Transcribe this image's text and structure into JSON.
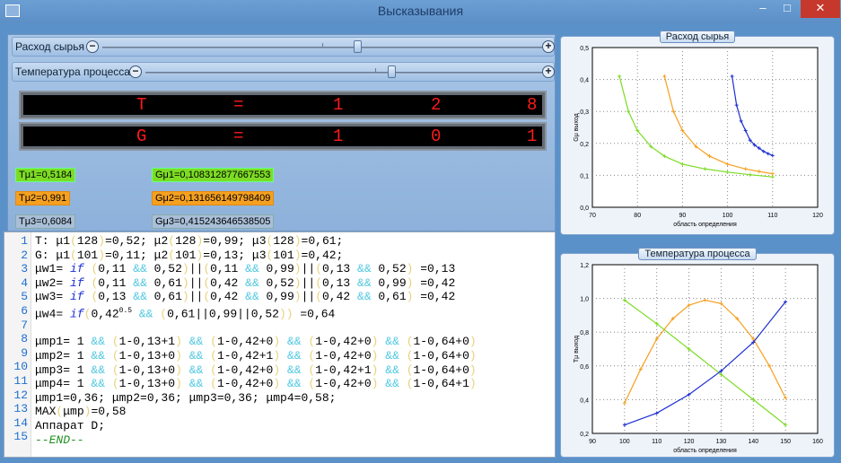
{
  "window": {
    "title": "Высказывания",
    "icon": "grid-app-icon",
    "min_label": "–",
    "max_label": "□",
    "close_label": "✕"
  },
  "sliders": [
    {
      "label": "Расход сырья",
      "value": 0.58,
      "tick": 0.5
    },
    {
      "label": "Температура процесса",
      "value": 0.62,
      "tick": 0.58
    }
  ],
  "displays": [
    {
      "name": "T",
      "eq": "=",
      "d1": "1",
      "d2": "2",
      "d3": "8"
    },
    {
      "name": "G",
      "eq": "=",
      "d1": "1",
      "d2": "0",
      "d3": "1"
    }
  ],
  "chips": {
    "tm1": "Tμ1=0,5184",
    "gm1": "Gμ1=0,108312877667553",
    "tm2": "Tμ2=0,991",
    "gm2": "Gμ2=0,131656149798409",
    "tm3": "Tμ3=0,6084",
    "gm3": "Gμ3=0,415243646538505",
    "colors": {
      "green": "#7cdc24",
      "orange": "#f5a020",
      "gray": "#a9bfd8"
    }
  },
  "code": {
    "line_numbers": [
      "1",
      "2",
      "3",
      "4",
      "5",
      "6",
      "7",
      "8",
      "9",
      "10",
      "11",
      "12",
      "13",
      "14",
      "15"
    ]
  },
  "chart1": {
    "title": "Расход сырья",
    "xlabel": "область определения",
    "ylabel": "Gμ выход",
    "xticks": [
      "70",
      "80",
      "90",
      "100",
      "110",
      "120"
    ],
    "yticks": [
      "0,0",
      "0,1",
      "0,2",
      "0,3",
      "0,4",
      "0,5"
    ]
  },
  "chart2": {
    "title": "Температура процесса",
    "xlabel": "область определения",
    "ylabel": "Tμ выход",
    "xticks": [
      "90",
      "100",
      "110",
      "120",
      "130",
      "140",
      "150",
      "160"
    ],
    "yticks": [
      "0,2",
      "0,4",
      "0,6",
      "0,8",
      "1,0",
      "1,2"
    ]
  },
  "chart_data": [
    {
      "type": "line",
      "title": "Расход сырья",
      "xlabel": "область определения",
      "ylabel": "Gμ выход",
      "xlim": [
        70,
        120
      ],
      "ylim": [
        0,
        0.5
      ],
      "series": [
        {
          "name": "green",
          "color": "#7cdc24",
          "x": [
            76,
            78,
            80,
            83,
            86,
            90,
            95,
            100,
            105,
            110
          ],
          "y": [
            0.41,
            0.3,
            0.24,
            0.19,
            0.16,
            0.135,
            0.12,
            0.11,
            0.102,
            0.095
          ]
        },
        {
          "name": "orange",
          "color": "#f5a020",
          "x": [
            86,
            88,
            90,
            93,
            96,
            100,
            104,
            107,
            110
          ],
          "y": [
            0.41,
            0.3,
            0.24,
            0.19,
            0.16,
            0.135,
            0.12,
            0.112,
            0.105
          ]
        },
        {
          "name": "blue",
          "color": "#1e2fd0",
          "x": [
            101,
            102,
            103,
            104,
            105,
            106,
            107,
            108,
            109,
            110
          ],
          "y": [
            0.41,
            0.32,
            0.27,
            0.24,
            0.21,
            0.195,
            0.185,
            0.175,
            0.168,
            0.162
          ]
        }
      ]
    },
    {
      "type": "line",
      "title": "Температура процесса",
      "xlabel": "область определения",
      "ylabel": "Tμ выход",
      "xlim": [
        90,
        160
      ],
      "ylim": [
        0.2,
        1.2
      ],
      "series": [
        {
          "name": "green",
          "color": "#7cdc24",
          "x": [
            100,
            110,
            120,
            130,
            140,
            150
          ],
          "y": [
            0.99,
            0.85,
            0.7,
            0.55,
            0.4,
            0.25
          ]
        },
        {
          "name": "orange",
          "color": "#f5a020",
          "x": [
            100,
            105,
            110,
            115,
            120,
            125,
            130,
            135,
            140,
            145,
            150
          ],
          "y": [
            0.38,
            0.58,
            0.76,
            0.88,
            0.96,
            0.99,
            0.97,
            0.88,
            0.76,
            0.6,
            0.41
          ]
        },
        {
          "name": "blue",
          "color": "#1e2fd0",
          "x": [
            100,
            110,
            120,
            130,
            140,
            150
          ],
          "y": [
            0.25,
            0.32,
            0.43,
            0.57,
            0.74,
            0.98
          ]
        }
      ]
    }
  ]
}
